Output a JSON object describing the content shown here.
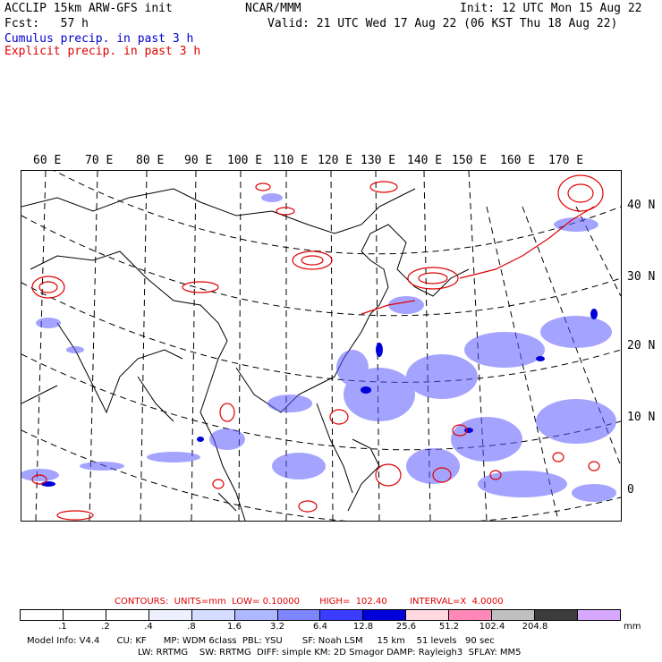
{
  "header": {
    "line1_left": "ACCLIP 15km ARW-GFS init",
    "line1_center": "NCAR/MMM",
    "line1_right": "Init: 12 UTC Mon 15 Aug 22",
    "line2_left": "Fcst:   57 h",
    "line2_right": "Valid: 21 UTC Wed 17 Aug 22 (06 KST Thu 18 Aug 22)",
    "legend_cumulus": "Cumulus precip. in past 3 h",
    "legend_explicit": "Explicit precip. in past 3 h"
  },
  "colors": {
    "cumulus": "#0000d0",
    "explicit": "#e00000",
    "map_border": "#000000"
  },
  "map": {
    "lon_labels": [
      "60 E",
      "70 E",
      "80 E",
      "90 E",
      "100 E",
      "110 E",
      "120 E",
      "130 E",
      "140 E",
      "150 E",
      "160 E",
      "170 E"
    ],
    "lat_labels": [
      "40 N",
      "30 N",
      "20 N",
      "10 N",
      "0"
    ]
  },
  "contours": {
    "label": "CONTOURS:  UNITS=mm  LOW= 0.10000       HIGH=  102.40        INTERVAL=X  4.0000"
  },
  "colorbar": {
    "colors": [
      "#ffffff",
      "#ffffff",
      "#ffffff",
      "#eef0ff",
      "#d6dcff",
      "#aeb8ff",
      "#7e86ff",
      "#3c3cff",
      "#0000d8",
      "#ffd8e0",
      "#ff88b8",
      "#c0c0c0",
      "#3c3c3c",
      "#d8a8ff"
    ],
    "ticks": [
      ".1",
      ".2",
      ".4",
      ".8",
      "1.6",
      "3.2",
      "6.4",
      "12.8",
      "25.6",
      "51.2",
      "102.4",
      "204.8"
    ],
    "units": "mm"
  },
  "footer": {
    "line1": "Model Info: V4.4      CU: KF      MP: WDM 6class  PBL: YSU       SF: Noah LSM     15 km    51 levels   90 sec",
    "line2": "LW: RRTMG    SW: RRTMG  DIFF: simple KM: 2D Smagor DAMP: Rayleigh3  SFLAY: MM5"
  }
}
